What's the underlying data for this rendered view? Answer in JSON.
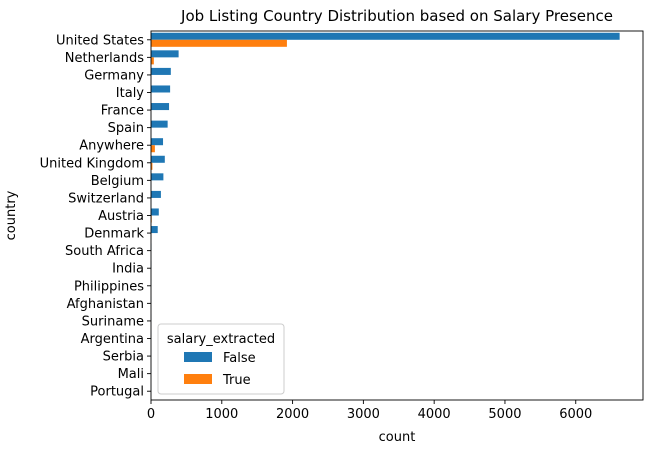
{
  "chart_data": {
    "type": "bar",
    "orientation": "horizontal",
    "title": "Job Listing Country Distribution based on Salary Presence",
    "xlabel": "count",
    "ylabel": "country",
    "xlim": [
      0,
      6950
    ],
    "xticks": [
      0,
      1000,
      2000,
      3000,
      4000,
      5000,
      6000
    ],
    "grid": false,
    "categories": [
      "United States",
      "Netherlands",
      "Germany",
      "Italy",
      "France",
      "Spain",
      "Anywhere",
      "United Kingdom",
      "Belgium",
      "Switzerland",
      "Austria",
      "Denmark",
      "South Africa",
      "India",
      "Philippines",
      "Afghanistan",
      "Suriname",
      "Argentina",
      "Serbia",
      "Mali",
      "Portugal"
    ],
    "legend": {
      "title": "salary_extracted",
      "placement": "lower-left"
    },
    "series": [
      {
        "name": "False",
        "color": "#1f77b4",
        "values": [
          6620,
          390,
          280,
          270,
          255,
          235,
          170,
          195,
          175,
          140,
          110,
          95,
          5,
          4,
          3,
          2,
          2,
          2,
          1,
          1,
          1
        ]
      },
      {
        "name": "True",
        "color": "#ff7f0e",
        "values": [
          1920,
          40,
          0,
          0,
          0,
          0,
          55,
          20,
          0,
          0,
          10,
          5,
          0,
          0,
          0,
          0,
          0,
          0,
          0,
          0,
          0
        ]
      }
    ]
  }
}
